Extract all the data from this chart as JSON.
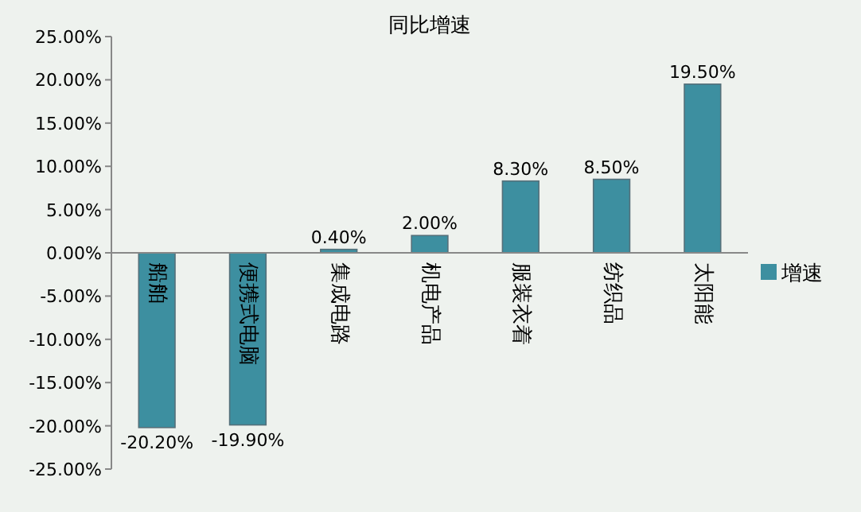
{
  "chart_data": {
    "type": "bar",
    "title": "同比增速",
    "categories": [
      "船舶",
      "便携式电脑",
      "集成电路",
      "机电产品",
      "服装衣着",
      "纺织品",
      "太阳能"
    ],
    "series": [
      {
        "name": "增速",
        "color": "#3d8fa0",
        "values": [
          -20.2,
          -19.9,
          0.4,
          2.0,
          8.3,
          8.5,
          19.5
        ],
        "value_labels": [
          "-20.20%",
          "-19.90%",
          "0.40%",
          "2.00%",
          "8.30%",
          "8.50%",
          "19.50%"
        ]
      }
    ],
    "ylim": [
      -25,
      25
    ],
    "yticks": [
      {
        "value": 25,
        "label": "25.00%"
      },
      {
        "value": 20,
        "label": "20.00%"
      },
      {
        "value": 15,
        "label": "15.00%"
      },
      {
        "value": 10,
        "label": "10.00%"
      },
      {
        "value": 5,
        "label": "5.00%"
      },
      {
        "value": 0,
        "label": "0.00%"
      },
      {
        "value": -5,
        "label": "-5.00%"
      },
      {
        "value": -10,
        "label": "-10.00%"
      },
      {
        "value": -15,
        "label": "-15.00%"
      },
      {
        "value": -20,
        "label": "-20.00%"
      },
      {
        "value": -25,
        "label": "-25.00%"
      }
    ],
    "grid": false,
    "legend": "right"
  }
}
